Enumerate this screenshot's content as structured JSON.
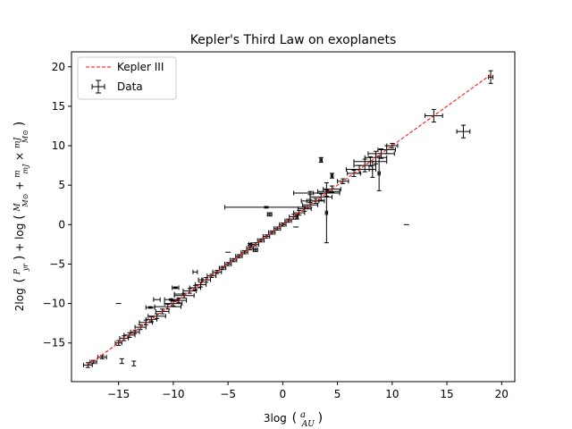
{
  "chart_data": {
    "type": "scatter",
    "title": "Kepler's Third Law on exoplanets",
    "xlabel": "3log (a/AU)",
    "ylabel": "2log (P/yr) + log (M/M⊙ + m/mJ × mJ/M⊙)",
    "xlim": [
      -19.3,
      21.2
    ],
    "ylim": [
      -19.9,
      21.9
    ],
    "xticks": [
      -15,
      -10,
      -5,
      0,
      5,
      10,
      15,
      20
    ],
    "yticks": [
      -15,
      -10,
      -5,
      0,
      5,
      10,
      15,
      20
    ],
    "tick_labels_x": [
      "−15",
      "−10",
      "−5",
      "0",
      "5",
      "10",
      "15",
      "20"
    ],
    "tick_labels_y": [
      "−15",
      "−10",
      "−5",
      "0",
      "5",
      "10",
      "15",
      "20"
    ],
    "grid": false,
    "legend": {
      "placement": "top-left",
      "entries": [
        "Kepler III",
        "Data"
      ]
    },
    "series": [
      {
        "name": "Kepler III",
        "kind": "line",
        "style": "dashed",
        "color": "#ff0000",
        "x": [
          -17.8,
          19.0
        ],
        "y": [
          -17.8,
          19.0
        ]
      },
      {
        "name": "Data",
        "kind": "errorbar",
        "color": "#000000",
        "points": [
          {
            "x": -17.8,
            "y": -17.8,
            "xe": 0.4,
            "ye": 0.3
          },
          {
            "x": -17.3,
            "y": -17.4,
            "xe": 0.3,
            "ye": 0.2
          },
          {
            "x": -16.5,
            "y": -16.8,
            "xe": 0.4,
            "ye": 0.2
          },
          {
            "x": -15.0,
            "y": -15.0,
            "xe": 0.3,
            "ye": 0.3
          },
          {
            "x": -14.5,
            "y": -14.4,
            "xe": 0.4,
            "ye": 0.3
          },
          {
            "x": -14.0,
            "y": -14.0,
            "xe": 0.5,
            "ye": 0.3
          },
          {
            "x": -13.5,
            "y": -13.6,
            "xe": 0.4,
            "ye": 0.2
          },
          {
            "x": -13.0,
            "y": -13.0,
            "xe": 0.5,
            "ye": 0.3
          },
          {
            "x": -12.5,
            "y": -12.4,
            "xe": 0.6,
            "ye": 0.3
          },
          {
            "x": -12.0,
            "y": -12.0,
            "xe": 0.5,
            "ye": 0.3
          },
          {
            "x": -11.5,
            "y": -11.6,
            "xe": 0.8,
            "ye": 0.3
          },
          {
            "x": -11.0,
            "y": -11.0,
            "xe": 0.6,
            "ye": 0.3
          },
          {
            "x": -10.5,
            "y": -10.4,
            "xe": 1.2,
            "ye": 0.3
          },
          {
            "x": -10.0,
            "y": -10.0,
            "xe": 0.8,
            "ye": 0.3
          },
          {
            "x": -9.5,
            "y": -9.6,
            "xe": 0.7,
            "ye": 0.3
          },
          {
            "x": -9.0,
            "y": -9.0,
            "xe": 0.9,
            "ye": 0.3
          },
          {
            "x": -8.5,
            "y": -8.4,
            "xe": 0.6,
            "ye": 0.3
          },
          {
            "x": -8.0,
            "y": -8.0,
            "xe": 0.5,
            "ye": 0.3
          },
          {
            "x": -7.5,
            "y": -7.6,
            "xe": 0.5,
            "ye": 0.3
          },
          {
            "x": -7.0,
            "y": -7.0,
            "xe": 0.4,
            "ye": 0.3
          },
          {
            "x": -6.5,
            "y": -6.5,
            "xe": 0.4,
            "ye": 0.2
          },
          {
            "x": -6.0,
            "y": -6.0,
            "xe": 0.4,
            "ye": 0.2
          },
          {
            "x": -5.5,
            "y": -5.5,
            "xe": 0.3,
            "ye": 0.2
          },
          {
            "x": -5.0,
            "y": -5.0,
            "xe": 0.3,
            "ye": 0.2
          },
          {
            "x": -4.5,
            "y": -4.5,
            "xe": 0.3,
            "ye": 0.2
          },
          {
            "x": -4.0,
            "y": -4.0,
            "xe": 0.3,
            "ye": 0.2
          },
          {
            "x": -3.5,
            "y": -3.5,
            "xe": 0.3,
            "ye": 0.2
          },
          {
            "x": -3.0,
            "y": -3.0,
            "xe": 0.3,
            "ye": 0.2
          },
          {
            "x": -2.5,
            "y": -2.5,
            "xe": 0.3,
            "ye": 0.2
          },
          {
            "x": -2.0,
            "y": -2.0,
            "xe": 0.3,
            "ye": 0.2
          },
          {
            "x": -1.5,
            "y": -1.5,
            "xe": 0.3,
            "ye": 0.2
          },
          {
            "x": -1.0,
            "y": -1.0,
            "xe": 0.3,
            "ye": 0.2
          },
          {
            "x": -0.5,
            "y": -0.5,
            "xe": 0.3,
            "ye": 0.2
          },
          {
            "x": 0.0,
            "y": 0.0,
            "xe": 0.3,
            "ye": 0.2
          },
          {
            "x": 0.5,
            "y": 0.5,
            "xe": 0.3,
            "ye": 0.2
          },
          {
            "x": 1.0,
            "y": 1.0,
            "xe": 0.4,
            "ye": 0.3
          },
          {
            "x": 1.5,
            "y": 1.5,
            "xe": 0.5,
            "ye": 0.3
          },
          {
            "x": 2.0,
            "y": 2.0,
            "xe": 0.6,
            "ye": 0.3
          },
          {
            "x": 2.5,
            "y": 2.5,
            "xe": 0.7,
            "ye": 0.3
          },
          {
            "x": 3.0,
            "y": 3.0,
            "xe": 0.8,
            "ye": 0.3
          },
          {
            "x": 3.5,
            "y": 3.5,
            "xe": 1.0,
            "ye": 0.4
          },
          {
            "x": 4.0,
            "y": 4.0,
            "xe": 1.2,
            "ye": 0.4
          },
          {
            "x": 4.5,
            "y": 4.5,
            "xe": 0.8,
            "ye": 0.4
          },
          {
            "x": 5.5,
            "y": 5.5,
            "xe": 0.5,
            "ye": 0.3
          },
          {
            "x": 6.5,
            "y": 6.5,
            "xe": 0.6,
            "ye": 0.4
          },
          {
            "x": 7.0,
            "y": 7.0,
            "xe": 1.2,
            "ye": 0.5
          },
          {
            "x": 7.5,
            "y": 7.5,
            "xe": 1.0,
            "ye": 0.8
          },
          {
            "x": 8.0,
            "y": 8.0,
            "xe": 1.5,
            "ye": 0.6
          },
          {
            "x": 8.5,
            "y": 8.5,
            "xe": 1.0,
            "ye": 0.8
          },
          {
            "x": 9.0,
            "y": 9.0,
            "xe": 1.2,
            "ye": 0.6
          },
          {
            "x": 9.5,
            "y": 9.5,
            "xe": 0.8,
            "ye": 0.5
          },
          {
            "x": 10.0,
            "y": 10.0,
            "xe": 0.5,
            "ye": 0.3
          },
          {
            "x": -15.0,
            "y": -10.0,
            "xe": 0.0,
            "ye": 0.0
          },
          {
            "x": -11.5,
            "y": -9.5,
            "xe": 0.3,
            "ye": 0.0
          },
          {
            "x": -9.5,
            "y": -8.8,
            "xe": 0.4,
            "ye": 0.0
          },
          {
            "x": -8.0,
            "y": -6.0,
            "xe": 0.2,
            "ye": 0.0
          },
          {
            "x": -7.5,
            "y": -7.0,
            "xe": 0.2,
            "ye": 0.0
          },
          {
            "x": -3.0,
            "y": -2.5,
            "xe": 0.1,
            "ye": 0.1
          },
          {
            "x": -2.5,
            "y": -3.2,
            "xe": 0.2,
            "ye": 0.2
          },
          {
            "x": 1.3,
            "y": 1.0,
            "xe": 0.1,
            "ye": 0.3
          },
          {
            "x": 3.5,
            "y": 8.2,
            "xe": 0.1,
            "ye": 0.3
          },
          {
            "x": 4.0,
            "y": 1.5,
            "xe": 0.1,
            "ye": 3.8
          },
          {
            "x": -1.5,
            "y": 2.2,
            "xe": 3.8,
            "ye": 0.1
          },
          {
            "x": 4.2,
            "y": 4.2,
            "xe": 1.0,
            "ye": 0.1
          },
          {
            "x": 4.5,
            "y": 6.2,
            "xe": 0.1,
            "ye": 0.3
          },
          {
            "x": 2.5,
            "y": 4.0,
            "xe": 1.5,
            "ye": 0.2
          },
          {
            "x": 2.5,
            "y": 3.0,
            "xe": 0.8,
            "ye": 0.2
          },
          {
            "x": 8.8,
            "y": 6.5,
            "xe": 0.1,
            "ye": 2.2
          },
          {
            "x": 8.2,
            "y": 7.0,
            "xe": 0.3,
            "ye": 1.0
          },
          {
            "x": 11.3,
            "y": 0.0,
            "xe": 0.0,
            "ye": 0.0
          },
          {
            "x": 13.8,
            "y": 13.8,
            "xe": 0.8,
            "ye": 0.8
          },
          {
            "x": 16.5,
            "y": 11.8,
            "xe": 0.6,
            "ye": 0.8
          },
          {
            "x": 19.0,
            "y": 18.7,
            "xe": 0.2,
            "ye": 0.8
          },
          {
            "x": -14.7,
            "y": -17.3,
            "xe": 0.0,
            "ye": 0.3
          },
          {
            "x": -13.6,
            "y": -17.6,
            "xe": 0.0,
            "ye": 0.3
          },
          {
            "x": -12.1,
            "y": -10.5,
            "xe": 0.4,
            "ye": 0.1
          },
          {
            "x": -10.2,
            "y": -9.5,
            "xe": 0.6,
            "ye": 0.1
          },
          {
            "x": -9.8,
            "y": -8.0,
            "xe": 0.3,
            "ye": 0.1
          },
          {
            "x": -5.0,
            "y": -3.5,
            "xe": 0.0,
            "ye": 0.0
          },
          {
            "x": -1.2,
            "y": 1.3,
            "xe": 0.2,
            "ye": 0.2
          },
          {
            "x": 1.2,
            "y": -0.3,
            "xe": 0.0,
            "ye": 0.0
          }
        ]
      }
    ]
  }
}
